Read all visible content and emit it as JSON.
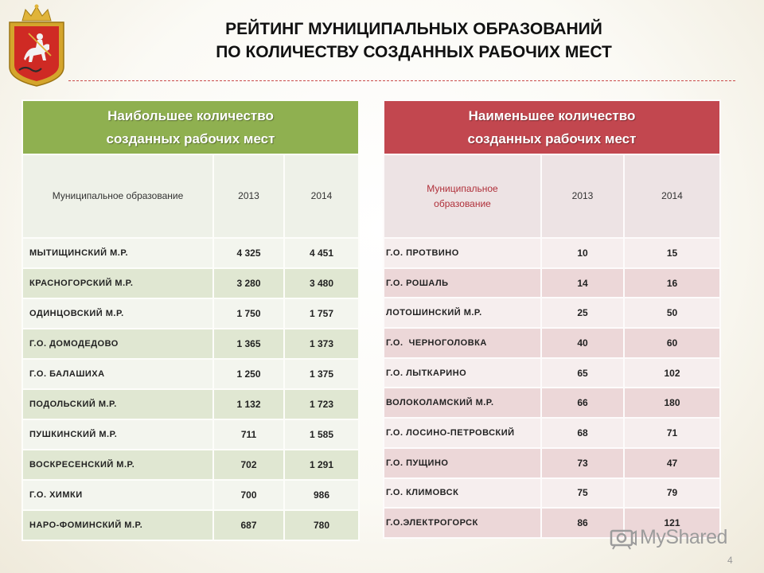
{
  "slide": {
    "title_line1": "РЕЙТИНГ МУНИЦИПАЛЬНЫХ ОБРАЗОВАНИЙ",
    "title_line2": "ПО КОЛИЧЕСТВУ СОЗДАННЫХ РАБОЧИХ МЕСТ",
    "page_number": "4",
    "watermark": "MyShared"
  },
  "colors": {
    "left_header": "#8fb050",
    "right_header": "#c2474f",
    "divider": "#c94a4a"
  },
  "left_table": {
    "header_line1": "Наибольшее количество",
    "header_line2": "созданных рабочих мест",
    "col_municipality": "Муниципальное образование",
    "col_2013": "2013",
    "col_2014": "2014",
    "rows": [
      {
        "name": "МЫТИЩИНСКИЙ М.Р.",
        "y2013": "4 325",
        "y2014": "4 451"
      },
      {
        "name": "КРАСНОГОРСКИЙ М.Р.",
        "y2013": "3 280",
        "y2014": "3 480"
      },
      {
        "name": "ОДИНЦОВСКИЙ М.Р.",
        "y2013": "1 750",
        "y2014": "1 757"
      },
      {
        "name": "Г.О. ДОМОДЕДОВО",
        "y2013": "1 365",
        "y2014": "1 373"
      },
      {
        "name": "Г.О. БАЛАШИХА",
        "y2013": "1 250",
        "y2014": "1 375"
      },
      {
        "name": "ПОДОЛЬСКИЙ М.Р.",
        "y2013": "1 132",
        "y2014": "1 723"
      },
      {
        "name": "ПУШКИНСКИЙ М.Р.",
        "y2013": "711",
        "y2014": "1 585"
      },
      {
        "name": "ВОСКРЕСЕНСКИЙ М.Р.",
        "y2013": "702",
        "y2014": "1 291"
      },
      {
        "name": "Г.О. ХИМКИ",
        "y2013": "700",
        "y2014": "986"
      },
      {
        "name": "НАРО-ФОМИНСКИЙ М.Р.",
        "y2013": "687",
        "y2014": "780"
      }
    ]
  },
  "right_table": {
    "header_line1": "Наименьшее количество",
    "header_line2": "созданных рабочих мест",
    "col_municipality_line1": "Муниципальное",
    "col_municipality_line2": "образование",
    "col_2013": "2013",
    "col_2014": "2014",
    "rows": [
      {
        "name": "Г.О. ПРОТВИНО",
        "y2013": "10",
        "y2014": "15"
      },
      {
        "name": "Г.О. РОШАЛЬ",
        "y2013": "14",
        "y2014": "16"
      },
      {
        "name": "ЛОТОШИНСКИЙ М.Р.",
        "y2013": "25",
        "y2014": "50"
      },
      {
        "name": "Г.О.  ЧЕРНОГОЛОВКА",
        "y2013": "40",
        "y2014": "60"
      },
      {
        "name": "Г.О. ЛЫТКАРИНО",
        "y2013": "65",
        "y2014": "102"
      },
      {
        "name": "ВОЛОКОЛАМСКИЙ М.Р.",
        "y2013": "66",
        "y2014": "180"
      },
      {
        "name": "Г.О. ЛОСИНО-ПЕТРОВСКИЙ",
        "y2013": "68",
        "y2014": "71"
      },
      {
        "name": "Г.О. ПУЩИНО",
        "y2013": "73",
        "y2014": "47"
      },
      {
        "name": "Г.О. КЛИМОВСК",
        "y2013": "75",
        "y2014": "79"
      },
      {
        "name": "Г.О.ЭЛЕКТРОГОРСК",
        "y2013": "86",
        "y2014": "121"
      }
    ]
  }
}
